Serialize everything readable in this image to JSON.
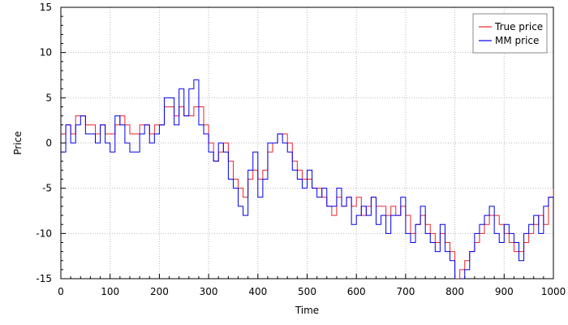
{
  "chart_data": {
    "type": "line",
    "title": "",
    "xlabel": "Time",
    "ylabel": "Price",
    "xlim": [
      0,
      1000
    ],
    "ylim": [
      -15,
      15
    ],
    "xticks": [
      "0",
      "100",
      "200",
      "300",
      "400",
      "500",
      "600",
      "700",
      "800",
      "900",
      "1000"
    ],
    "yticks": [
      "15",
      "10",
      "5",
      "0",
      "-5",
      "-10",
      "-15"
    ],
    "grid": true,
    "legend_position": "top-right",
    "series": [
      {
        "name": "True price",
        "color": "#e8242b",
        "x": [
          0,
          10,
          20,
          30,
          40,
          50,
          60,
          70,
          80,
          90,
          100,
          110,
          120,
          130,
          140,
          150,
          160,
          170,
          180,
          190,
          200,
          210,
          220,
          230,
          240,
          250,
          260,
          270,
          280,
          290,
          300,
          310,
          320,
          330,
          340,
          350,
          360,
          370,
          380,
          390,
          400,
          410,
          420,
          430,
          440,
          450,
          460,
          470,
          480,
          490,
          500,
          510,
          520,
          530,
          540,
          550,
          560,
          570,
          580,
          590,
          600,
          610,
          620,
          630,
          640,
          650,
          660,
          670,
          680,
          690,
          700,
          710,
          720,
          730,
          740,
          750,
          760,
          770,
          780,
          790,
          800,
          810,
          820,
          830,
          840,
          850,
          860,
          870,
          880,
          890,
          900,
          910,
          920,
          930,
          940,
          950,
          960,
          970,
          980,
          990,
          1000
        ],
        "values": [
          1,
          2,
          1,
          3,
          3,
          2,
          2,
          1,
          2,
          1,
          1,
          2,
          3,
          2,
          1,
          1,
          2,
          2,
          1,
          2,
          2,
          4,
          4,
          3,
          4,
          3,
          3,
          4,
          4,
          2,
          0,
          -2,
          -1,
          0,
          -2,
          -4,
          -5,
          -6,
          -4,
          -3,
          -4,
          -3,
          -1,
          0,
          1,
          1,
          0,
          -2,
          -3,
          -4,
          -4,
          -5,
          -5,
          -6,
          -7,
          -8,
          -6,
          -7,
          -6,
          -7,
          -6,
          -8,
          -7,
          -6,
          -7,
          -7,
          -8,
          -7,
          -8,
          -7,
          -8,
          -10,
          -9,
          -8,
          -9,
          -10,
          -11,
          -10,
          -11,
          -12,
          -15,
          -14,
          -13,
          -12,
          -11,
          -10,
          -9,
          -8,
          -8,
          -9,
          -10,
          -11,
          -12,
          -12,
          -11,
          -10,
          -9,
          -8,
          -9,
          -6,
          -5
        ]
      },
      {
        "name": "MM price",
        "color": "#0000ee",
        "x": [
          0,
          10,
          20,
          30,
          40,
          50,
          60,
          70,
          80,
          90,
          100,
          110,
          120,
          130,
          140,
          150,
          160,
          170,
          180,
          190,
          200,
          210,
          220,
          230,
          240,
          250,
          260,
          270,
          280,
          290,
          300,
          310,
          320,
          330,
          340,
          350,
          360,
          370,
          380,
          390,
          400,
          410,
          420,
          430,
          440,
          450,
          460,
          470,
          480,
          490,
          500,
          510,
          520,
          530,
          540,
          550,
          560,
          570,
          580,
          590,
          600,
          610,
          620,
          630,
          640,
          650,
          660,
          670,
          680,
          690,
          700,
          710,
          720,
          730,
          740,
          750,
          760,
          770,
          780,
          790,
          800,
          810,
          820,
          830,
          840,
          850,
          860,
          870,
          880,
          890,
          900,
          910,
          920,
          930,
          940,
          950,
          960,
          970,
          980,
          990,
          1000
        ],
        "values": [
          -1,
          2,
          0,
          2,
          3,
          1,
          1,
          0,
          2,
          0,
          -1,
          3,
          2,
          0,
          -1,
          -1,
          1,
          2,
          0,
          1,
          2,
          5,
          5,
          2,
          6,
          3,
          6,
          7,
          2,
          1,
          -1,
          -2,
          0,
          -1,
          -4,
          -5,
          -7,
          -8,
          -3,
          -1,
          -6,
          -4,
          0,
          0,
          1,
          0,
          -1,
          -3,
          -4,
          -5,
          -3,
          -5,
          -6,
          -5,
          -7,
          -7,
          -5,
          -7,
          -6,
          -9,
          -8,
          -7,
          -8,
          -6,
          -9,
          -8,
          -10,
          -8,
          -8,
          -6,
          -10,
          -11,
          -9,
          -7,
          -10,
          -11,
          -12,
          -9,
          -12,
          -13,
          -16,
          -15,
          -14,
          -12,
          -10,
          -9,
          -8,
          -7,
          -10,
          -11,
          -9,
          -10,
          -11,
          -13,
          -10,
          -9,
          -8,
          -10,
          -7,
          -6,
          -6
        ]
      }
    ]
  }
}
